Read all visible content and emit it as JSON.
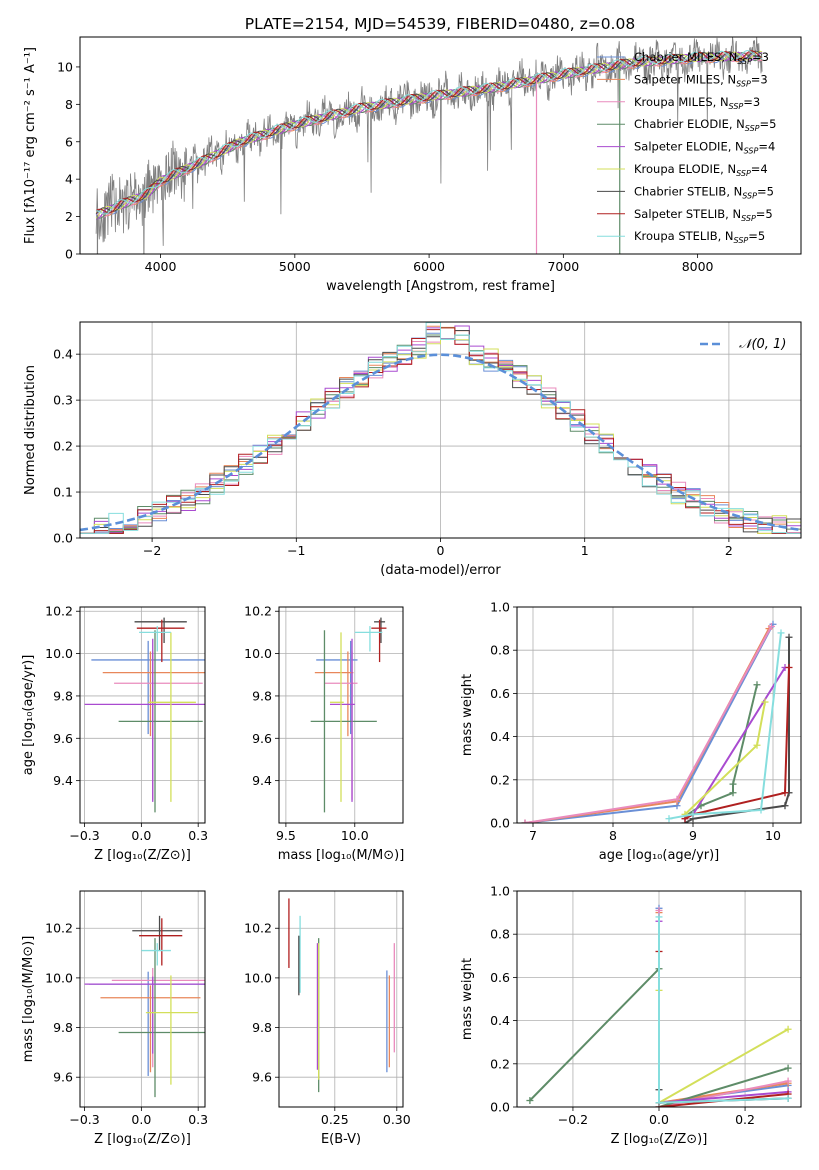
{
  "figure_title": "PLATE=2154, MJD=54539, FIBERID=0480, z=0.08",
  "model_colors": [
    "#6a8fd6",
    "#e8875a",
    "#e98bbd",
    "#5e8c68",
    "#a94bd0",
    "#d3df5a",
    "#4a4a4a",
    "#b02020",
    "#86dede"
  ],
  "chart_data": [
    {
      "id": "spectrum",
      "type": "line",
      "title": "PLATE=2154, MJD=54539, FIBERID=0480, z=0.08",
      "xlabel": "wavelength [Angstrom, rest frame]",
      "ylabel": "Flux [fλ10⁻¹⁷ erg cm⁻² s⁻¹ A⁻¹]",
      "xlim": [
        3400,
        8770
      ],
      "ylim": [
        0,
        11.6
      ],
      "xticks": [
        4000,
        5000,
        6000,
        7000,
        8000
      ],
      "yticks": [
        0,
        2,
        4,
        6,
        8,
        10
      ],
      "grid": false,
      "legend_position": "right",
      "series": [
        {
          "name": "Chabrier MILES, N_SSP=3"
        },
        {
          "name": "Salpeter MILES, N_SSP=3"
        },
        {
          "name": "Kroupa MILES, N_SSP=3"
        },
        {
          "name": "Chabrier ELODIE, N_SSP=5"
        },
        {
          "name": "Salpeter ELODIE, N_SSP=4"
        },
        {
          "name": "Kroupa ELODIE, N_SSP=4"
        },
        {
          "name": "Chabrier STELIB, N_SSP=5"
        },
        {
          "name": "Salpeter STELIB, N_SSP=5"
        },
        {
          "name": "Kroupa STELIB, N_SSP=5"
        }
      ],
      "continuum": [
        [
          3500,
          2.0
        ],
        [
          3700,
          2.6
        ],
        [
          3900,
          3.2
        ],
        [
          4000,
          3.9
        ],
        [
          4300,
          4.9
        ],
        [
          4600,
          6.0
        ],
        [
          5000,
          6.9
        ],
        [
          5500,
          7.8
        ],
        [
          6000,
          8.4
        ],
        [
          6500,
          8.9
        ],
        [
          7000,
          9.6
        ],
        [
          7500,
          10.2
        ],
        [
          8000,
          10.5
        ],
        [
          8500,
          10.6
        ]
      ]
    },
    {
      "id": "residuals",
      "type": "bar",
      "xlabel": "(data-model)/error",
      "ylabel": "Normed distribution",
      "xlim": [
        -2.5,
        2.5
      ],
      "ylim": [
        0,
        0.47
      ],
      "xticks": [
        -2,
        -1,
        0,
        1,
        2
      ],
      "yticks": [
        0.0,
        0.1,
        0.2,
        0.3,
        0.4
      ],
      "grid": true,
      "legend_position": "top-right",
      "legend": "𝒩(0, 1)",
      "bin_width": 0.1
    },
    {
      "id": "age-vs-Z",
      "type": "scatter",
      "xlabel": "Z [log₁₀(Z/Z⊙)]",
      "ylabel": "age  [log₁₀(age/yr)]",
      "xlim": [
        -0.27,
        0.28
      ],
      "ylim": [
        9.2,
        10.22
      ],
      "xticks": [
        -0.25,
        0.0,
        0.25
      ],
      "yticks": [
        9.4,
        9.6,
        9.8,
        10.0,
        10.2
      ],
      "grid": true,
      "series": [
        {
          "x": 0.03,
          "y": 9.97,
          "xerr": [
            0.25,
            0.27
          ],
          "yerr": [
            0.35,
            0.09
          ]
        },
        {
          "x": 0.04,
          "y": 9.91,
          "xerr": [
            0.21,
            0.24
          ],
          "yerr": [
            0.3,
            0.1
          ]
        },
        {
          "x": 0.05,
          "y": 9.86,
          "xerr": [
            0.17,
            0.22
          ],
          "yerr": [
            0.55,
            0.15
          ]
        },
        {
          "x": 0.06,
          "y": 9.68,
          "xerr": [
            0.16,
            0.21
          ],
          "yerr": [
            0.43,
            0.43
          ]
        },
        {
          "x": 0.05,
          "y": 9.76,
          "xerr": [
            0.3,
            0.26
          ],
          "yerr": [
            0.46,
            0.31
          ]
        },
        {
          "x": 0.13,
          "y": 9.77,
          "xerr": [
            0.1,
            0.11
          ],
          "yerr": [
            0.47,
            0.33
          ]
        },
        {
          "x": 0.1,
          "y": 10.15,
          "xerr": [
            0.13,
            0.1
          ],
          "yerr": [
            0.1,
            0.02
          ]
        },
        {
          "x": 0.09,
          "y": 10.12,
          "xerr": [
            0.11,
            0.1
          ],
          "yerr": [
            0.16,
            0.04
          ]
        },
        {
          "x": 0.07,
          "y": 10.1,
          "xerr": [
            0.08,
            0.06
          ],
          "yerr": [
            0.09,
            0.03
          ]
        }
      ]
    },
    {
      "id": "age-vs-mass",
      "type": "scatter",
      "xlabel": "mass [log₁₀(M/M⊙)]",
      "ylabel": "",
      "xlim": [
        9.45,
        10.35
      ],
      "ylim": [
        9.2,
        10.22
      ],
      "xticks": [
        9.5,
        10.0
      ],
      "yticks": [
        9.4,
        9.6,
        9.8,
        10.0,
        10.2
      ],
      "grid": true,
      "series": [
        {
          "x": 9.97,
          "y": 9.97,
          "xerr": [
            0.25,
            0.05
          ],
          "yerr": [
            0.35,
            0.09
          ]
        },
        {
          "x": 9.95,
          "y": 9.91,
          "xerr": [
            0.24,
            0.04
          ],
          "yerr": [
            0.3,
            0.1
          ]
        },
        {
          "x": 9.98,
          "y": 9.86,
          "xerr": [
            0.2,
            0.04
          ],
          "yerr": [
            0.55,
            0.15
          ]
        },
        {
          "x": 9.78,
          "y": 9.68,
          "xerr": [
            0.1,
            0.38
          ],
          "yerr": [
            0.43,
            0.43
          ]
        },
        {
          "x": 9.98,
          "y": 9.76,
          "xerr": [
            0.16,
            0.02
          ],
          "yerr": [
            0.46,
            0.31
          ]
        },
        {
          "x": 9.9,
          "y": 9.77,
          "xerr": [
            0.08,
            0.02
          ],
          "yerr": [
            0.47,
            0.33
          ]
        },
        {
          "x": 10.19,
          "y": 10.15,
          "xerr": [
            0.05,
            0.03
          ],
          "yerr": [
            0.1,
            0.02
          ]
        },
        {
          "x": 10.18,
          "y": 10.12,
          "xerr": [
            0.06,
            0.05
          ],
          "yerr": [
            0.16,
            0.04
          ]
        },
        {
          "x": 10.11,
          "y": 10.1,
          "xerr": [
            0.11,
            0.09
          ],
          "yerr": [
            0.09,
            0.03
          ]
        }
      ]
    },
    {
      "id": "mass-weight-vs-age",
      "type": "line",
      "xlabel": "age  [log₁₀(age/yr)]",
      "ylabel": "mass weight",
      "xlim": [
        6.8,
        10.35
      ],
      "ylim": [
        0,
        1.0
      ],
      "xticks": [
        7,
        8,
        9,
        10
      ],
      "yticks": [
        0.0,
        0.2,
        0.4,
        0.6,
        0.8,
        1.0
      ],
      "grid": true,
      "series": [
        {
          "x": [
            6.9,
            8.8,
            10.0
          ],
          "y": [
            0.0,
            0.08,
            0.92
          ]
        },
        {
          "x": [
            6.9,
            8.8,
            9.95
          ],
          "y": [
            0.0,
            0.1,
            0.9
          ]
        },
        {
          "x": [
            6.9,
            8.8,
            9.98
          ],
          "y": [
            0.0,
            0.11,
            0.91
          ]
        },
        {
          "x": [
            8.9,
            9.1,
            9.5,
            9.5,
            9.8
          ],
          "y": [
            0.03,
            0.08,
            0.14,
            0.18,
            0.64
          ]
        },
        {
          "x": [
            8.9,
            9.0,
            10.15
          ],
          "y": [
            0.02,
            0.04,
            0.72
          ]
        },
        {
          "x": [
            8.9,
            9.8,
            9.9
          ],
          "y": [
            0.04,
            0.36,
            0.56
          ]
        },
        {
          "x": [
            8.9,
            9.0,
            10.15,
            10.2,
            10.2
          ],
          "y": [
            0.0,
            0.02,
            0.08,
            0.14,
            0.86
          ]
        },
        {
          "x": [
            8.9,
            9.0,
            10.15,
            10.2
          ],
          "y": [
            0.02,
            0.04,
            0.14,
            0.72
          ]
        },
        {
          "x": [
            8.7,
            9.0,
            9.85,
            10.1
          ],
          "y": [
            0.02,
            0.04,
            0.06,
            0.88
          ]
        }
      ]
    },
    {
      "id": "mass-vs-Z",
      "type": "scatter",
      "xlabel": "Z [log₁₀(Z/Z⊙)]",
      "ylabel": "mass [log₁₀(M/M⊙)]",
      "xlim": [
        -0.27,
        0.28
      ],
      "ylim": [
        9.48,
        10.35
      ],
      "xticks": [
        -0.25,
        0.0,
        0.25
      ],
      "yticks": [
        9.6,
        9.8,
        10.0,
        10.2
      ],
      "grid": true,
      "series": [
        {
          "x": 0.03,
          "y": 9.975,
          "xerr": [
            0.26,
            0.26
          ],
          "yerr": [
            0.37,
            0.05
          ]
        },
        {
          "x": 0.04,
          "y": 9.92,
          "xerr": [
            0.22,
            0.22
          ],
          "yerr": [
            0.3,
            0.05
          ]
        },
        {
          "x": 0.05,
          "y": 9.99,
          "xerr": [
            0.18,
            0.23
          ],
          "yerr": [
            0.35,
            0.05
          ]
        },
        {
          "x": 0.06,
          "y": 9.78,
          "xerr": [
            0.16,
            0.22
          ],
          "yerr": [
            0.26,
            0.38
          ]
        },
        {
          "x": 0.05,
          "y": 9.975,
          "xerr": [
            0.3,
            0.26
          ],
          "yerr": [
            0.28,
            0.03
          ]
        },
        {
          "x": 0.13,
          "y": 9.86,
          "xerr": [
            0.11,
            0.12
          ],
          "yerr": [
            0.29,
            0.15
          ]
        },
        {
          "x": 0.08,
          "y": 10.19,
          "xerr": [
            0.12,
            0.1
          ],
          "yerr": [
            0.08,
            0.06
          ]
        },
        {
          "x": 0.09,
          "y": 10.17,
          "xerr": [
            0.1,
            0.09
          ],
          "yerr": [
            0.12,
            0.07
          ]
        },
        {
          "x": 0.07,
          "y": 10.11,
          "xerr": [
            0.07,
            0.06
          ],
          "yerr": [
            0.06,
            0.03
          ]
        }
      ]
    },
    {
      "id": "mass-vs-EBV",
      "type": "scatter",
      "xlabel": "E(B-V)",
      "ylabel": "",
      "xlim": [
        0.205,
        0.305
      ],
      "ylim": [
        9.48,
        10.35
      ],
      "xticks": [
        0.25,
        0.3
      ],
      "yticks": [
        9.6,
        9.8,
        10.0,
        10.2
      ],
      "grid": true,
      "series": [
        {
          "x": 0.292,
          "y": 9.82,
          "yerr": [
            0.2,
            0.21
          ]
        },
        {
          "x": 0.294,
          "y": 9.82,
          "yerr": [
            0.18,
            0.19
          ]
        },
        {
          "x": 0.298,
          "y": 9.88,
          "yerr": [
            0.18,
            0.26
          ]
        },
        {
          "x": 0.237,
          "y": 9.86,
          "yerr": [
            0.32,
            0.3
          ]
        },
        {
          "x": 0.236,
          "y": 9.89,
          "yerr": [
            0.26,
            0.25
          ]
        },
        {
          "x": 0.237,
          "y": 9.9,
          "yerr": [
            0.31,
            0.24
          ]
        },
        {
          "x": 0.221,
          "y": 10.06,
          "yerr": [
            0.13,
            0.11
          ]
        },
        {
          "x": 0.213,
          "y": 10.17,
          "yerr": [
            0.13,
            0.15
          ]
        },
        {
          "x": 0.222,
          "y": 10.09,
          "yerr": [
            0.15,
            0.16
          ]
        }
      ]
    },
    {
      "id": "mass-weight-vs-Z",
      "type": "line",
      "xlabel": "Z [log₁₀(Z/Z⊙)]",
      "ylabel": "mass weight",
      "xlim": [
        -0.33,
        0.33
      ],
      "ylim": [
        0,
        1.0
      ],
      "xticks": [
        -0.2,
        0.0,
        0.2
      ],
      "yticks": [
        0.0,
        0.2,
        0.4,
        0.6,
        0.8,
        1.0
      ],
      "grid": true,
      "series": [
        {
          "x": [
            0.0,
            0.0,
            0.3
          ],
          "y": [
            0.92,
            0.02,
            0.1
          ]
        },
        {
          "x": [
            0.0,
            0.0,
            0.3
          ],
          "y": [
            0.9,
            0.02,
            0.11
          ]
        },
        {
          "x": [
            0.0,
            0.0,
            0.3
          ],
          "y": [
            0.91,
            0.0,
            0.12
          ]
        },
        {
          "x": [
            -0.3,
            0.0,
            0.0,
            0.3
          ],
          "y": [
            0.03,
            0.64,
            0.0,
            0.18
          ]
        },
        {
          "x": [
            0.0,
            0.0,
            0.3
          ],
          "y": [
            0.86,
            0.02,
            0.07
          ]
        },
        {
          "x": [
            0.0,
            0.0,
            0.3
          ],
          "y": [
            0.54,
            0.02,
            0.36
          ]
        },
        {
          "x": [
            0.0,
            0.0,
            0.3
          ],
          "y": [
            0.08,
            0.02,
            0.04
          ]
        },
        {
          "x": [
            0.0,
            0.0,
            0.3
          ],
          "y": [
            0.72,
            0.0,
            0.06
          ]
        },
        {
          "x": [
            0.0,
            0.0,
            0.3
          ],
          "y": [
            0.88,
            0.02,
            0.04
          ]
        }
      ]
    }
  ]
}
